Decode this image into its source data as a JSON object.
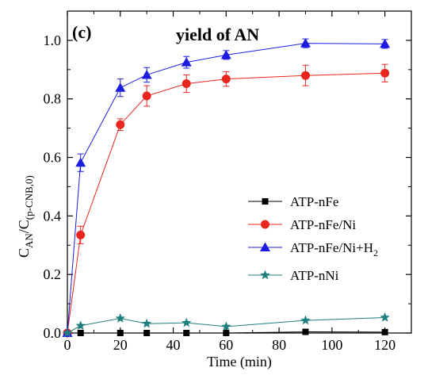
{
  "chart_data": {
    "type": "line",
    "panel_label": "(c)",
    "title": "yield of AN",
    "xlabel": "Time (min)",
    "ylabel": {
      "main": "C",
      "sub1": "AN",
      "slash": "/C",
      "sub2": "(p-CNB,0)"
    },
    "xlim": [
      0,
      130
    ],
    "ylim": [
      0,
      1.1
    ],
    "x_ticks": [
      0,
      20,
      40,
      60,
      80,
      100,
      120
    ],
    "x_tick_labels": [
      "0",
      "20",
      "40",
      "60",
      "80",
      "100",
      "120"
    ],
    "y_ticks": [
      0.0,
      0.2,
      0.4,
      0.6,
      0.8,
      1.0
    ],
    "y_tick_labels": [
      "0.0",
      "0.2",
      "0.4",
      "0.6",
      "0.8",
      "1.0"
    ],
    "grid": false,
    "legend_position": "center-right",
    "series": [
      {
        "name": "ATP-nFe",
        "color": "#000000",
        "marker": "square",
        "x": [
          0,
          5,
          20,
          30,
          45,
          60,
          90,
          120
        ],
        "y": [
          0.0,
          0.0,
          0.0,
          0.0,
          0.0,
          0.0,
          0.004,
          0.003
        ],
        "err": [
          0,
          0,
          0,
          0,
          0,
          0,
          0,
          0
        ]
      },
      {
        "name": "ATP-nFe/Ni",
        "color": "#e8251f",
        "marker": "circle",
        "x": [
          0,
          5,
          20,
          30,
          45,
          60,
          90,
          120
        ],
        "y": [
          0.0,
          0.335,
          0.712,
          0.81,
          0.852,
          0.868,
          0.88,
          0.888
        ],
        "err": [
          0,
          0.03,
          0.02,
          0.035,
          0.03,
          0.025,
          0.035,
          0.03
        ]
      },
      {
        "name": "ATP-nFe/Ni+H",
        "name_sub": "2",
        "color": "#1c1ce0",
        "marker": "triangle",
        "x": [
          0,
          5,
          20,
          30,
          45,
          60,
          90,
          120
        ],
        "y": [
          0.0,
          0.582,
          0.838,
          0.882,
          0.925,
          0.95,
          0.99,
          0.988
        ],
        "err": [
          0,
          0.03,
          0.03,
          0.025,
          0.02,
          0.015,
          0.015,
          0.015
        ]
      },
      {
        "name": "ATP-nNi",
        "color": "#1f7f7f",
        "marker": "star",
        "x": [
          0,
          5,
          20,
          30,
          45,
          60,
          90,
          120
        ],
        "y": [
          0.0,
          0.025,
          0.05,
          0.032,
          0.035,
          0.022,
          0.043,
          0.053
        ],
        "err": [
          0,
          0,
          0,
          0,
          0,
          0,
          0,
          0
        ]
      }
    ]
  }
}
